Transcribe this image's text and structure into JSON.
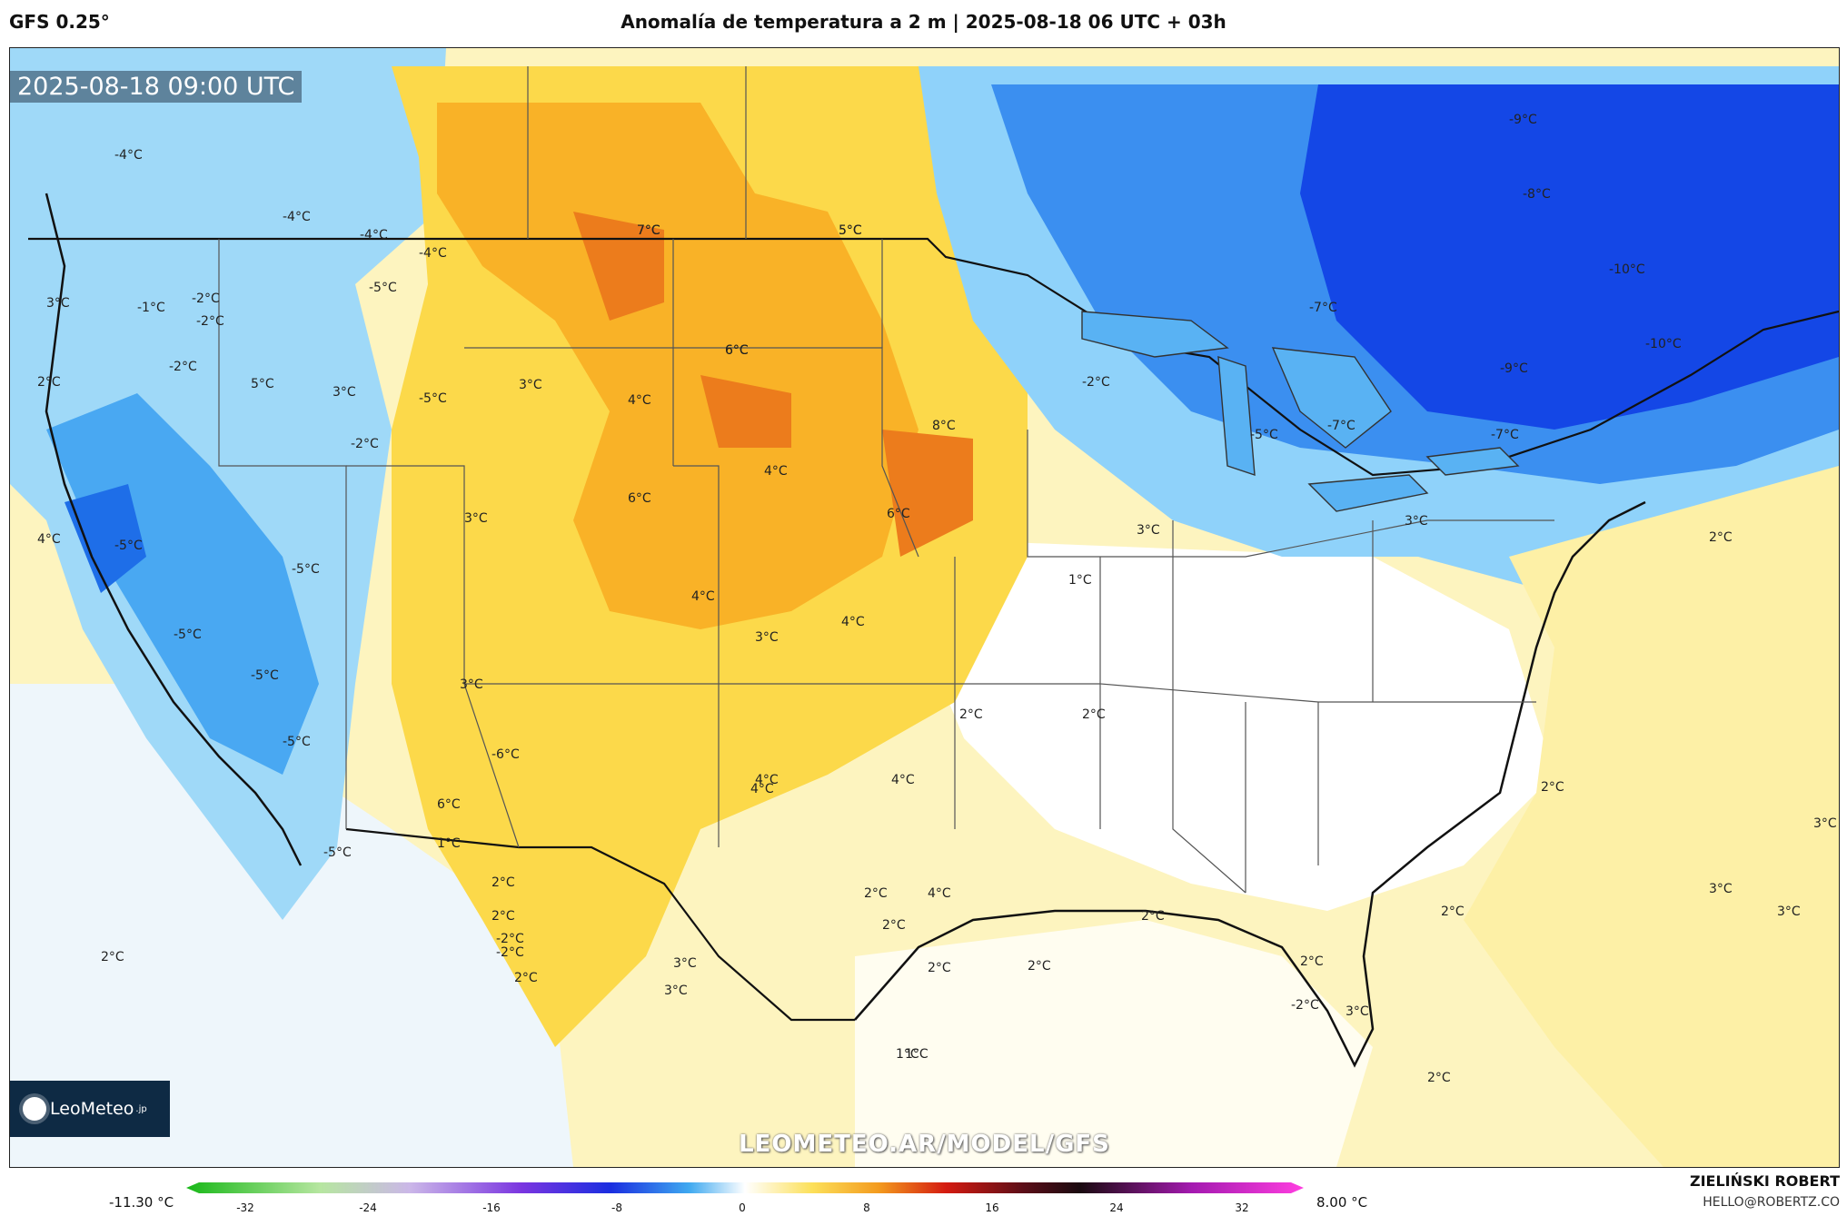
{
  "header": {
    "model": "GFS 0.25°",
    "title": "Anomalía de temperatura a 2 m | 2025-08-18 06 UTC + 03h"
  },
  "map": {
    "timestamp": "2025-08-18 09:00 UTC",
    "watermark": "LEOMETEO.AR/MODEL/GFS",
    "logo_text": "LeoMeteo",
    "logo_suffix": ".jp",
    "labels": [
      "-4°C",
      "-4°C",
      "-4°C",
      "-4°C",
      "-5°C",
      "-2°C",
      "3°C",
      "-1°C",
      "-2°C",
      "2°C",
      "-2°C",
      "5°C",
      "3°C",
      "-5°C",
      "-2°C",
      "3°C",
      "4°C",
      "4°C",
      "-5°C",
      "-5°C",
      "3°C",
      "6°C",
      "-5°C",
      "-5°C",
      "3°C",
      "4°C",
      "-6°C",
      "-5°C",
      "-5°C",
      "6°C",
      "1°C",
      "2°C",
      "2°C",
      "-2°C",
      "2°C",
      "3°C",
      "2°C",
      "1°C",
      "2°C",
      "7°C",
      "5°C",
      "6°C",
      "4°C",
      "8°C",
      "6°C",
      "4°C",
      "3°C",
      "-9°C",
      "-8°C",
      "-10°C",
      "-7°C",
      "-10°C",
      "-9°C",
      "-7°C",
      "-2°C",
      "-5°C",
      "-7°C",
      "3°C",
      "1°C",
      "3°C",
      "2°C",
      "2°C",
      "2°C",
      "2°C",
      "3°C",
      "3°C",
      "3°C",
      "2°C",
      "4°C",
      "4°C",
      "4°C",
      "2°C",
      "2°C",
      "2°C",
      "2°C",
      "1°C",
      "2°C",
      "2°C",
      "3°C",
      "-2°C",
      "-2°C",
      "7°C",
      "5°C",
      "6°C",
      "4°C",
      "3°C"
    ],
    "colors": {
      "deep_cold": "#0a2ee0",
      "cold": "#3b8ff0",
      "cool": "#8fd2fa",
      "neutral": "#ffffff",
      "warm_light": "#fdf3b0",
      "warm": "#fcd534",
      "hot": "#f7a21c",
      "very_hot": "#e8741a"
    }
  },
  "colorbar": {
    "min_label": "-11.30 °C",
    "max_label": "8.00 °C",
    "ticks": [
      "-32",
      "-24",
      "-16",
      "-8",
      "0",
      "8",
      "16",
      "24",
      "32"
    ]
  },
  "credit": {
    "name": "ZIELIŃSKI ROBERT",
    "email": "HELLO@ROBERTZ.CO"
  }
}
